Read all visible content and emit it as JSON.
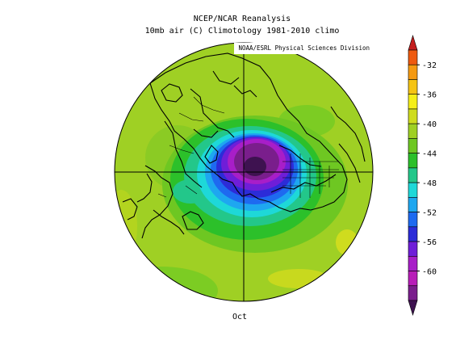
{
  "title_line1": "NCEP/NCAR Reanalysis",
  "title_line2": "10mb air (C) Climotology 1981-2010 climo",
  "credit": "NOAA/ESRL Physical Sciences Division",
  "caption": "Oct",
  "colorbar": {
    "ticks": [
      "-32",
      "-36",
      "-40",
      "-44",
      "-48",
      "-52",
      "-56",
      "-60"
    ],
    "colors": [
      "#c41e1e",
      "#ee5a10",
      "#f59a12",
      "#f5c414",
      "#f5ef18",
      "#cfdc1e",
      "#9fd024",
      "#6ec722",
      "#2cc02a",
      "#23c78a",
      "#1ed8d8",
      "#1ea7f0",
      "#1e6af0",
      "#2c2cd8",
      "#6f1ed8",
      "#a81ec8",
      "#b81eb8",
      "#7a1e8c",
      "#3e1250"
    ]
  },
  "map_data": {
    "projection": "north-polar-stereographic",
    "variable": "air temperature",
    "level": "10mb",
    "units": "C",
    "min": -60,
    "max": -32
  }
}
